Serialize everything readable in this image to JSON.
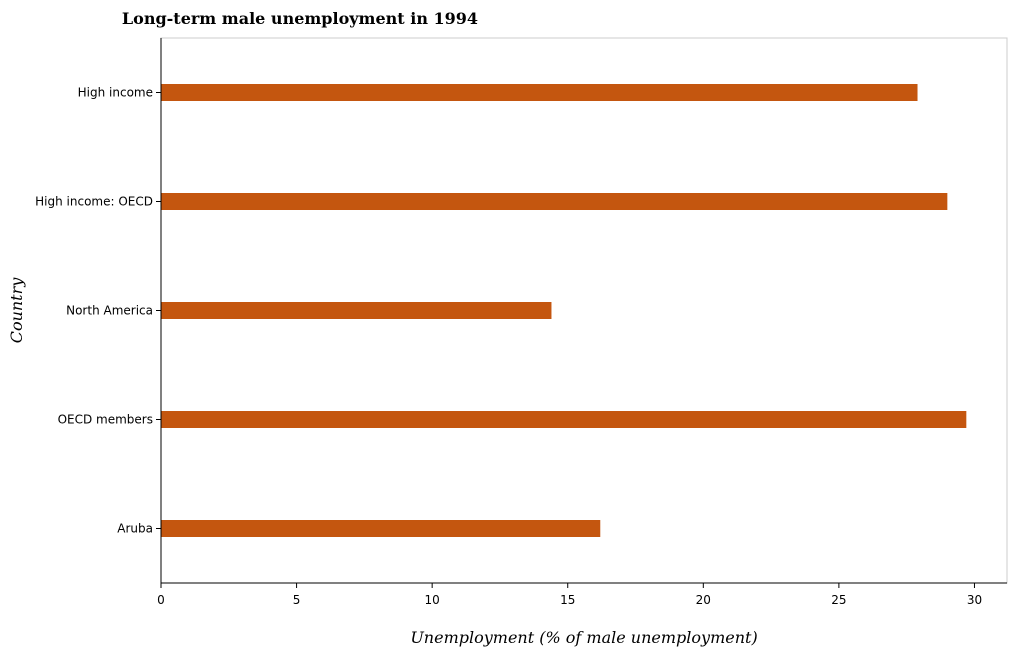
{
  "chart_data": {
    "type": "bar",
    "orientation": "horizontal",
    "title": "Long-term male unemployment in 1994",
    "xlabel": "Unemployment (% of male unemployment)",
    "ylabel": "Country",
    "categories": [
      "High income",
      "High income: OECD",
      "North America",
      "OECD members",
      "Aruba"
    ],
    "values": [
      27.9,
      29.0,
      14.4,
      29.7,
      16.2
    ],
    "xlim": [
      0,
      31.2
    ],
    "xticks": [
      0,
      5,
      10,
      15,
      20,
      25,
      30
    ],
    "xtick_labels": [
      "0",
      "5",
      "10",
      "15",
      "20",
      "25",
      "30"
    ],
    "grid": false,
    "legend": "none",
    "bar_color": "#c4560f"
  }
}
